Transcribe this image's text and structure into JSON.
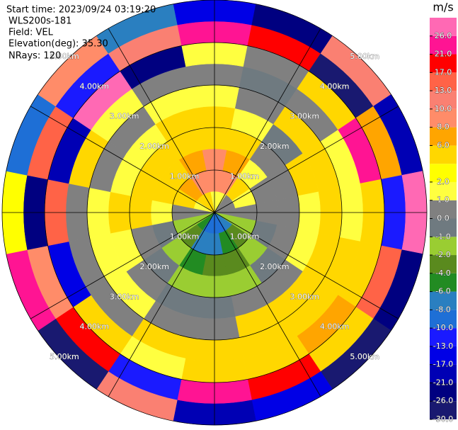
{
  "chart_data": {
    "type": "ppi",
    "title": "Start time: 2023/09/24 03:19:20",
    "annotations": [
      "WLS200s-181",
      "Field: VEL",
      "Elevation(deg): 35.30",
      "NRays: 120"
    ],
    "azimuth_deg": [
      0,
      22.5,
      45,
      67.5,
      90,
      112.5,
      135,
      157.5,
      180,
      202.5,
      225,
      247.5,
      270,
      292.5,
      315,
      337.5
    ],
    "range_km": [
      0,
      0.5,
      1,
      1.5,
      2,
      2.5,
      3,
      3.5,
      4,
      4.5,
      5
    ],
    "rlim": [
      0,
      5
    ],
    "rticks": [
      {
        "value": 1,
        "label": "1.00km"
      },
      {
        "value": 2,
        "label": "2.00km"
      },
      {
        "value": 3,
        "label": "3.00km"
      },
      {
        "value": 4,
        "label": "4.00km"
      },
      {
        "value": 5,
        "label": "5.00km"
      }
    ],
    "field": [
      [
        1.5,
        9,
        9,
        4,
        4,
        1.5,
        0.5,
        1.5,
        23,
        -15
      ],
      [
        1.5,
        9,
        7,
        4,
        1.5,
        0.5,
        -0.5,
        0.5,
        18,
        -24
      ],
      [
        0.5,
        4,
        1.5,
        0.5,
        -0.5,
        4,
        0.5,
        4,
        -28,
        12
      ],
      [
        0.5,
        1.5,
        0.5,
        0.5,
        4,
        4,
        1.5,
        22,
        7,
        -19
      ],
      [
        0.5,
        0.5,
        0.5,
        0.5,
        1.5,
        4,
        1.5,
        4,
        -11,
        27
      ],
      [
        -1.5,
        -1.5,
        -0.5,
        0.5,
        1.5,
        4,
        4,
        4,
        15,
        -22
      ],
      [
        -7,
        -3,
        -1.5,
        -0.5,
        0.5,
        4,
        4,
        7,
        4,
        -27
      ],
      [
        -9,
        -5,
        -3,
        -1.5,
        0.5,
        4,
        4,
        4,
        19,
        -14
      ],
      [
        -9,
        -7,
        -3,
        -1.5,
        -0.5,
        0.5,
        4,
        4,
        24,
        -18
      ],
      [
        -9,
        -7,
        -5,
        -1.5,
        -0.5,
        0.5,
        4,
        1.5,
        -12,
        11
      ],
      [
        -5,
        -3,
        -1.5,
        -0.5,
        0.5,
        1.5,
        0.5,
        4,
        20,
        -29
      ],
      [
        -1.5,
        -1.5,
        -0.5,
        0.5,
        1.5,
        1.5,
        0.5,
        -16,
        9,
        25
      ],
      [
        0.5,
        0.5,
        1.5,
        4,
        4,
        1.5,
        0.5,
        14,
        -23,
        3
      ],
      [
        1.5,
        4,
        4,
        4,
        1.5,
        0.5,
        4,
        -20,
        16,
        -9
      ],
      [
        4,
        7,
        4,
        4,
        1.5,
        0.5,
        1.5,
        26,
        -13,
        8
      ],
      [
        4,
        9,
        7,
        4,
        4,
        1.5,
        0.5,
        -25,
        11,
        -7
      ]
    ],
    "colorbar": {
      "label": "m/s",
      "levels": [
        -30,
        -26,
        -21,
        -17,
        -13,
        -10,
        -8,
        -6,
        -4,
        -2,
        -1,
        0,
        1,
        2,
        4,
        6,
        8,
        10,
        13,
        17,
        21,
        26,
        30
      ],
      "colors": [
        "#191970",
        "#000080",
        "#0000b4",
        "#0000e6",
        "#1a1aff",
        "#1e6fd6",
        "#2a7fc0",
        "#228b22",
        "#5a8a1e",
        "#9acd32",
        "#6f7a80",
        "#808080",
        "#ffff40",
        "#ffff00",
        "#ffd700",
        "#ffa500",
        "#ff8c69",
        "#fa8072",
        "#ff6347",
        "#ff0000",
        "#ff1493",
        "#ff69b4"
      ],
      "ticks": [
        {
          "value": -30,
          "label": "-30.0"
        },
        {
          "value": -26,
          "label": "-26.0"
        },
        {
          "value": -21,
          "label": "-21.0"
        },
        {
          "value": -17,
          "label": "-17.0"
        },
        {
          "value": -13,
          "label": "-13.0"
        },
        {
          "value": -10,
          "label": "-10.0"
        },
        {
          "value": -8,
          "label": "-8.0"
        },
        {
          "value": -6,
          "label": "-6.0"
        },
        {
          "value": -4,
          "label": "-4.0"
        },
        {
          "value": -2,
          "label": "-2.0"
        },
        {
          "value": -1,
          "label": "-1.0"
        },
        {
          "value": 0,
          "label": "0.0"
        },
        {
          "value": 1,
          "label": "1.0"
        },
        {
          "value": 2,
          "label": "2.0"
        },
        {
          "value": 6,
          "label": "6.0"
        },
        {
          "value": 8,
          "label": "8.0"
        },
        {
          "value": 10,
          "label": "10.0"
        },
        {
          "value": 13,
          "label": "13.0"
        },
        {
          "value": 17,
          "label": "17.0"
        },
        {
          "value": 21,
          "label": "21.0"
        },
        {
          "value": 26,
          "label": "26.0"
        }
      ]
    }
  }
}
